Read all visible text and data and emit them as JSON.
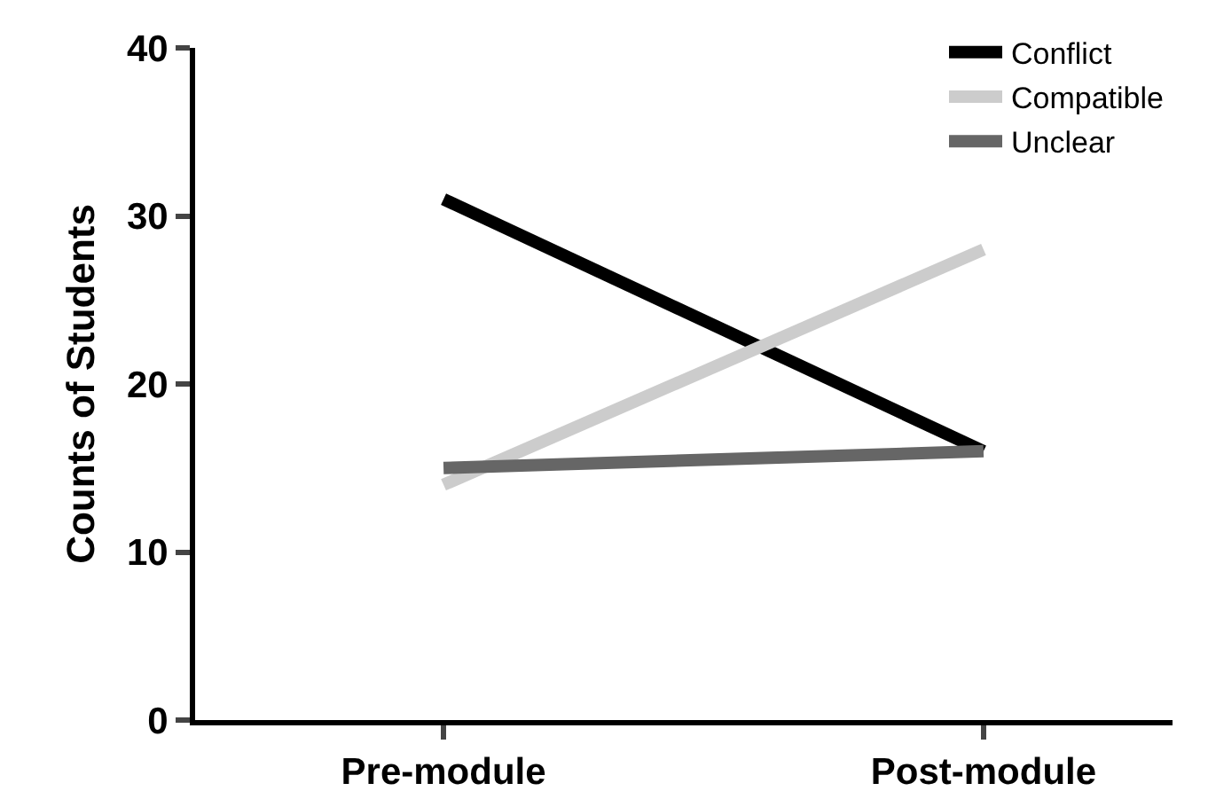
{
  "chart_data": {
    "type": "line",
    "ylabel": "Counts of Students",
    "categories": [
      "Pre-module",
      "Post-module"
    ],
    "series": [
      {
        "name": "Conflict",
        "color": "#000000",
        "values": [
          31,
          16
        ]
      },
      {
        "name": "Compatible",
        "color": "#cccccc",
        "values": [
          14,
          28
        ]
      },
      {
        "name": "Unclear",
        "color": "#666666",
        "values": [
          15,
          16
        ]
      }
    ],
    "ylim": [
      0,
      40
    ],
    "yticks": [
      0,
      10,
      20,
      30,
      40
    ],
    "grid": false,
    "legend": "top right",
    "marker": "none",
    "line_style": "solid"
  }
}
